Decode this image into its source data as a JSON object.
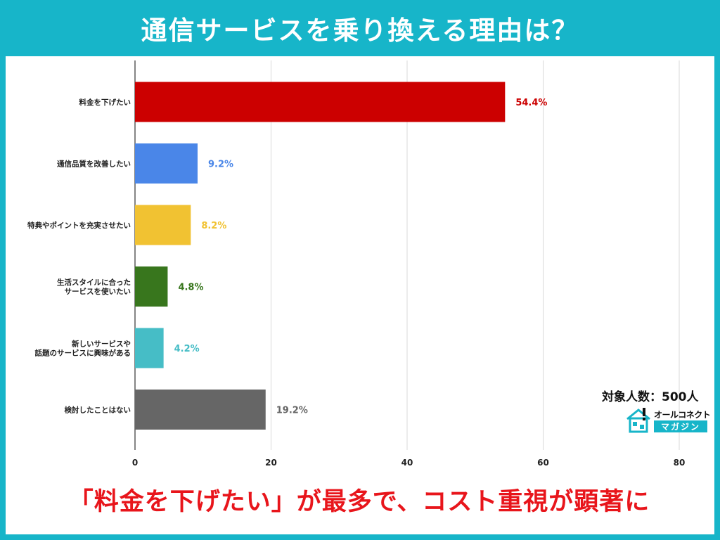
{
  "header": {
    "title": "通信サービスを乗り換える理由は？"
  },
  "sample_note": "対象人数：500人",
  "logo": {
    "line1": "オールコネクト",
    "line2": "マガジン"
  },
  "banner": {
    "text": "「料金を下げたい」が最多で、コスト重視が顕著に"
  },
  "chart_data": {
    "type": "bar",
    "orientation": "horizontal",
    "categories": [
      [
        "料金を下げたい"
      ],
      [
        "通信品質を改善したい"
      ],
      [
        "特典やポイントを充実させたい"
      ],
      [
        "生活スタイルに合った",
        "サービスを使いたい"
      ],
      [
        "新しいサービスや",
        "話題のサービスに興味がある"
      ],
      [
        "検討したことはない"
      ]
    ],
    "values": [
      54.4,
      9.2,
      8.2,
      4.8,
      4.2,
      19.2
    ],
    "value_labels": [
      "54.4%",
      "9.2%",
      "8.2%",
      "4.8%",
      "4.2%",
      "19.2%"
    ],
    "colors": [
      "#cc0000",
      "#4a86e8",
      "#f1c232",
      "#38761d",
      "#46bdc6",
      "#666666"
    ],
    "xlim": [
      0,
      80
    ],
    "xticks": [
      0,
      20,
      40,
      60,
      80
    ],
    "grid": true
  }
}
